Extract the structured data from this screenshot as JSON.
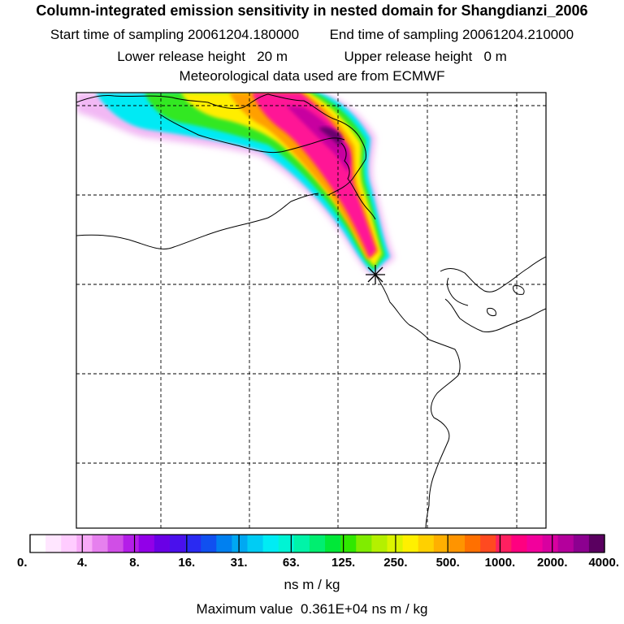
{
  "header": {
    "title": "Column-integrated emission sensitivity in nested domain for Shangdianzi_2006",
    "start_label": "Start time of sampling",
    "start_value": "20061204.180000",
    "end_label": "End time of sampling",
    "end_value": "20061204.210000",
    "lower_label": "Lower release height",
    "lower_value": "20 m",
    "upper_label": "Upper release height",
    "upper_value": "0 m",
    "met_text": "Meteorological data used are from ECMWF"
  },
  "colorbar": {
    "ticks": [
      "0.",
      "4.",
      "8.",
      "16.",
      "31.",
      "63.",
      "125.",
      "250.",
      "500.",
      "1000.",
      "2000.",
      "4000."
    ],
    "unit": "ns m / kg",
    "colors": [
      "#ffffff",
      "#ffe6ff",
      "#ffccff",
      "#f7aaf7",
      "#e680ee",
      "#d04ee6",
      "#b41ee8",
      "#9200e8",
      "#6a00e6",
      "#4a10ec",
      "#2a2af2",
      "#1050f0",
      "#0080f0",
      "#00a8f2",
      "#00ccf4",
      "#00ecf4",
      "#00f4d4",
      "#00f4a8",
      "#00ee70",
      "#00e838",
      "#30e800",
      "#80ec00",
      "#b4f000",
      "#dcf400",
      "#fff000",
      "#ffd000",
      "#ffb000",
      "#ff9400",
      "#ff7000",
      "#ff4a20",
      "#ff2060",
      "#ff0080",
      "#f2009c",
      "#d800a0",
      "#b4009c",
      "#8c0090",
      "#5a0060"
    ]
  },
  "max_value": {
    "label": "Maximum value",
    "value": "0.361E+04",
    "unit": "ns m / kg"
  },
  "map": {
    "receptor": "Shangdianzi",
    "receptor_marker": "star-cross",
    "gridlines": "dashed"
  }
}
